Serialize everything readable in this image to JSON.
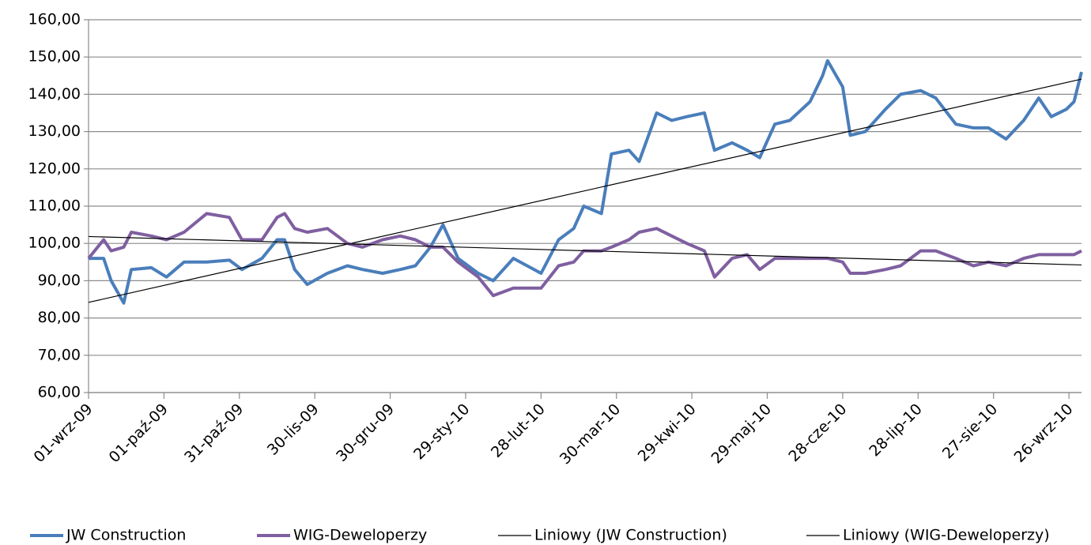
{
  "chart_data": {
    "type": "line",
    "x": [
      "2009-09-01",
      "2009-09-07",
      "2009-09-10",
      "2009-09-15",
      "2009-09-18",
      "2009-09-26",
      "2009-10-02",
      "2009-10-09",
      "2009-10-18",
      "2009-10-27",
      "2009-11-01",
      "2009-11-09",
      "2009-11-15",
      "2009-11-18",
      "2009-11-22",
      "2009-11-27",
      "2009-12-05",
      "2009-12-13",
      "2009-12-19",
      "2009-12-27",
      "2010-01-03",
      "2010-01-09",
      "2010-01-15",
      "2010-01-20",
      "2010-01-26",
      "2010-02-03",
      "2010-02-09",
      "2010-02-17",
      "2010-02-28",
      "2010-03-07",
      "2010-03-13",
      "2010-03-17",
      "2010-03-24",
      "2010-03-28",
      "2010-04-04",
      "2010-04-08",
      "2010-04-15",
      "2010-04-21",
      "2010-04-27",
      "2010-05-04",
      "2010-05-08",
      "2010-05-15",
      "2010-05-21",
      "2010-05-26",
      "2010-06-01",
      "2010-06-07",
      "2010-06-15",
      "2010-06-20",
      "2010-06-22",
      "2010-06-28",
      "2010-07-01",
      "2010-07-07",
      "2010-07-15",
      "2010-07-21",
      "2010-07-29",
      "2010-08-04",
      "2010-08-12",
      "2010-08-19",
      "2010-08-25",
      "2010-09-01",
      "2010-09-08",
      "2010-09-14",
      "2010-09-19",
      "2010-09-25",
      "2010-09-28",
      "2010-10-01"
    ],
    "series": [
      {
        "name": "JW Construction",
        "color": "#4a7ebb",
        "values": [
          96,
          96,
          90,
          84,
          93,
          93.5,
          91,
          95,
          95,
          95.5,
          93,
          96,
          101,
          101,
          93,
          89,
          92,
          94,
          93,
          92,
          93,
          94,
          99,
          105,
          96,
          92,
          90,
          96,
          92,
          101,
          104,
          110,
          108,
          124,
          125,
          122,
          135,
          133,
          134,
          135,
          125,
          127,
          125,
          123,
          132,
          133,
          138,
          145,
          149,
          142,
          129,
          130,
          136,
          140,
          141,
          139,
          132,
          131,
          131,
          128,
          133,
          139,
          134,
          136,
          138,
          146
        ],
        "trendline": {
          "name": "Liniowy (JW Construction)",
          "color": "#000000"
        }
      },
      {
        "name": "WIG-Deweloperzy",
        "color": "#7f5fa0",
        "values": [
          96,
          101,
          98,
          99,
          103,
          102,
          101,
          103,
          108,
          107,
          101,
          101,
          107,
          108,
          104,
          103,
          104,
          100,
          99,
          101,
          102,
          101,
          99,
          99,
          95,
          91,
          86,
          88,
          88,
          94,
          95,
          98,
          98,
          99,
          101,
          103,
          104,
          102,
          100,
          98,
          91,
          96,
          97,
          93,
          96,
          96,
          96,
          96,
          96,
          95,
          92,
          92,
          93,
          94,
          98,
          98,
          96,
          94,
          95,
          94,
          96,
          97,
          97,
          97,
          97,
          98
        ],
        "trendline": {
          "name": "Liniowy (WIG-Deweloperzy)",
          "color": "#000000"
        }
      }
    ],
    "xlim": [
      "2009-09-01",
      "2010-10-01"
    ],
    "xticks": [
      {
        "value": "2009-09-01",
        "label": "01-wrz-09"
      },
      {
        "value": "2009-10-01",
        "label": "01-paź-09"
      },
      {
        "value": "2009-10-31",
        "label": "31-paź-09"
      },
      {
        "value": "2009-11-30",
        "label": "30-lis-09"
      },
      {
        "value": "2009-12-30",
        "label": "30-gru-09"
      },
      {
        "value": "2010-01-29",
        "label": "29-sty-10"
      },
      {
        "value": "2010-02-28",
        "label": "28-lut-10"
      },
      {
        "value": "2010-03-30",
        "label": "30-mar-10"
      },
      {
        "value": "2010-04-29",
        "label": "29-kwi-10"
      },
      {
        "value": "2010-05-29",
        "label": "29-maj-10"
      },
      {
        "value": "2010-06-28",
        "label": "28-cze-10"
      },
      {
        "value": "2010-07-28",
        "label": "28-lip-10"
      },
      {
        "value": "2010-08-27",
        "label": "27-sie-10"
      },
      {
        "value": "2010-09-26",
        "label": "26-wrz-10"
      }
    ],
    "ylim": [
      60,
      160
    ],
    "yticks": [
      {
        "value": 60,
        "label": "60,00"
      },
      {
        "value": 70,
        "label": "70,00"
      },
      {
        "value": 80,
        "label": "80,00"
      },
      {
        "value": 90,
        "label": "90,00"
      },
      {
        "value": 100,
        "label": "100,00"
      },
      {
        "value": 110,
        "label": "110,00"
      },
      {
        "value": 120,
        "label": "120,00"
      },
      {
        "value": 130,
        "label": "130,00"
      },
      {
        "value": 140,
        "label": "140,00"
      },
      {
        "value": 150,
        "label": "150,00"
      },
      {
        "value": 160,
        "label": "160,00"
      }
    ],
    "grid": true,
    "legend": "bottom"
  }
}
